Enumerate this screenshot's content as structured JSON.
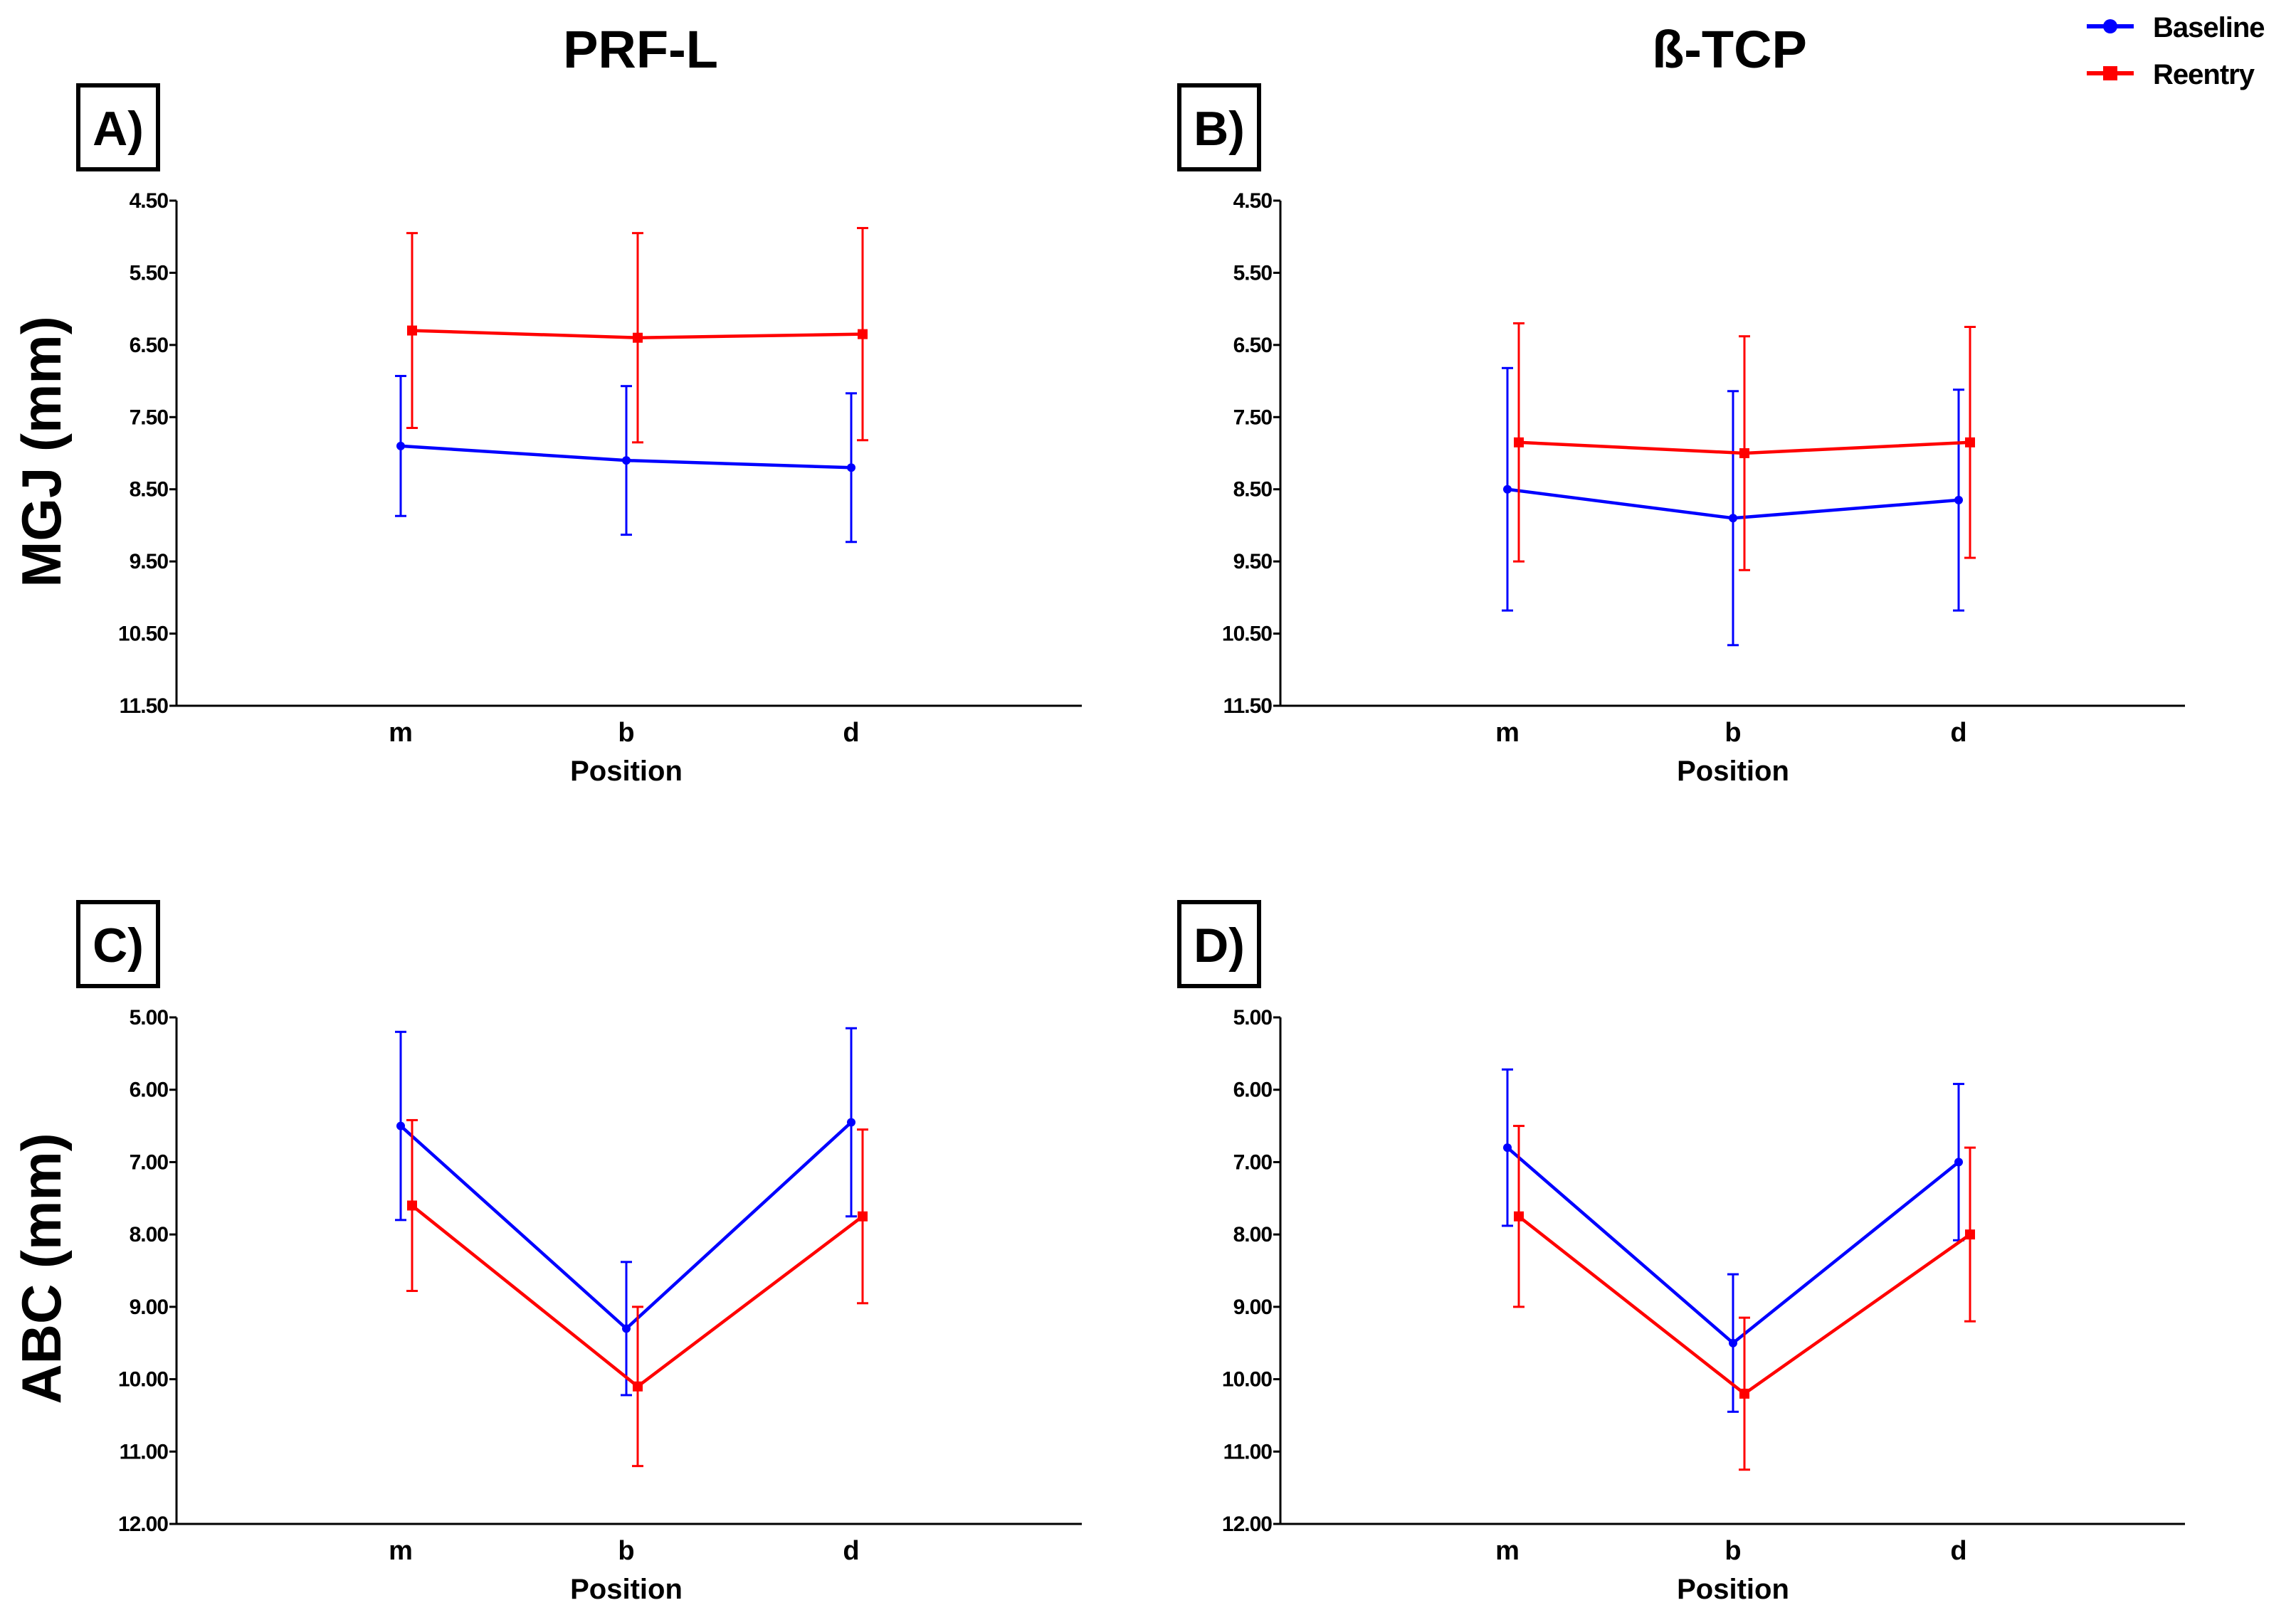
{
  "column_titles": [
    "PRF-L",
    "ß-TCP"
  ],
  "row_labels": [
    "MGJ (mm)",
    "ABC (mm)"
  ],
  "legend": [
    {
      "label": "Baseline",
      "color": "#0000ff",
      "marker": "circle"
    },
    {
      "label": "Reentry",
      "color": "#ff0000",
      "marker": "square"
    }
  ],
  "chart_data": [
    {
      "type": "line",
      "panel": "A)",
      "title": "PRF-L",
      "xlabel": "Position",
      "ylabel": "MGJ (mm)",
      "categories": [
        "m",
        "b",
        "d"
      ],
      "ylim": [
        4.5,
        11.5
      ],
      "y_inverted": true,
      "yticks": [
        "4.50",
        "5.50",
        "6.50",
        "7.50",
        "8.50",
        "9.50",
        "10.50",
        "11.50"
      ],
      "series": [
        {
          "name": "Baseline",
          "values": [
            7.9,
            8.1,
            8.2
          ],
          "error": [
            0.97,
            1.03,
            1.03
          ]
        },
        {
          "name": "Reentry",
          "values": [
            6.3,
            6.4,
            6.35
          ],
          "error": [
            1.35,
            1.45,
            1.47
          ]
        }
      ]
    },
    {
      "type": "line",
      "panel": "B)",
      "title": "ß-TCP",
      "xlabel": "Position",
      "ylabel": "MGJ (mm)",
      "categories": [
        "m",
        "b",
        "d"
      ],
      "ylim": [
        4.5,
        11.5
      ],
      "y_inverted": true,
      "yticks": [
        "4.50",
        "5.50",
        "6.50",
        "7.50",
        "8.50",
        "9.50",
        "10.50",
        "11.50"
      ],
      "series": [
        {
          "name": "Baseline",
          "values": [
            8.5,
            8.9,
            8.65
          ],
          "error": [
            1.68,
            1.76,
            1.53
          ]
        },
        {
          "name": "Reentry",
          "values": [
            7.85,
            8.0,
            7.85
          ],
          "error": [
            1.65,
            1.62,
            1.6
          ]
        }
      ]
    },
    {
      "type": "line",
      "panel": "C)",
      "xlabel": "Position",
      "ylabel": "ABC (mm)",
      "categories": [
        "m",
        "b",
        "d"
      ],
      "ylim": [
        5.0,
        12.0
      ],
      "y_inverted": true,
      "yticks": [
        "5.00",
        "6.00",
        "7.00",
        "8.00",
        "9.00",
        "10.00",
        "11.00",
        "12.00"
      ],
      "series": [
        {
          "name": "Baseline",
          "values": [
            6.5,
            9.3,
            6.45
          ],
          "error": [
            1.3,
            0.92,
            1.3
          ]
        },
        {
          "name": "Reentry",
          "values": [
            7.6,
            10.1,
            7.75
          ],
          "error": [
            1.18,
            1.1,
            1.2
          ]
        }
      ]
    },
    {
      "type": "line",
      "panel": "D)",
      "xlabel": "Position",
      "ylabel": "ABC (mm)",
      "categories": [
        "m",
        "b",
        "d"
      ],
      "ylim": [
        5.0,
        12.0
      ],
      "y_inverted": true,
      "yticks": [
        "5.00",
        "6.00",
        "7.00",
        "8.00",
        "9.00",
        "10.00",
        "11.00",
        "12.00"
      ],
      "series": [
        {
          "name": "Baseline",
          "values": [
            6.8,
            9.5,
            7.0
          ],
          "error": [
            1.08,
            0.95,
            1.08
          ]
        },
        {
          "name": "Reentry",
          "values": [
            7.75,
            10.2,
            8.0
          ],
          "error": [
            1.25,
            1.05,
            1.2
          ]
        }
      ]
    }
  ]
}
